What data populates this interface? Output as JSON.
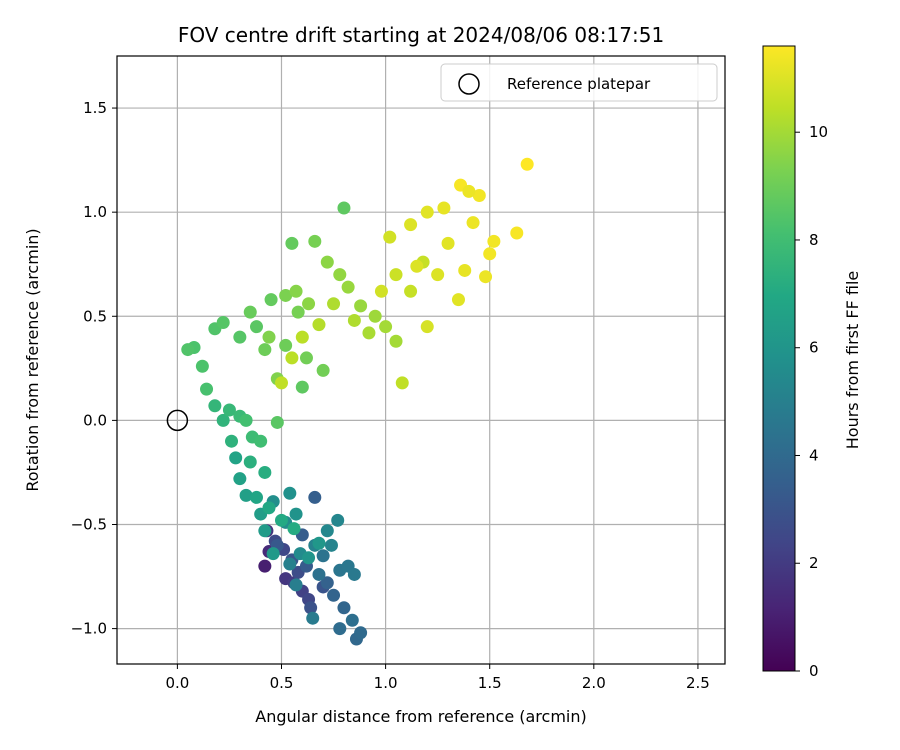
{
  "chart_data": {
    "type": "scatter",
    "title": "FOV centre drift starting at 2024/08/06 08:17:51",
    "xlabel": "Angular distance from reference (arcmin)",
    "ylabel": "Rotation from reference (arcmin)",
    "xlim": [
      -0.29,
      2.63
    ],
    "ylim": [
      -1.17,
      1.75
    ],
    "xticks": [
      0.0,
      0.5,
      1.0,
      1.5,
      2.0,
      2.5
    ],
    "xtick_labels": [
      "0.0",
      "0.5",
      "1.0",
      "1.5",
      "2.0",
      "2.5"
    ],
    "yticks": [
      -1.0,
      -0.5,
      0.0,
      0.5,
      1.0,
      1.5
    ],
    "ytick_labels": [
      "−1.0",
      "−0.5",
      "0.0",
      "0.5",
      "1.0",
      "1.5"
    ],
    "grid": true,
    "legend": {
      "position": "top-right",
      "entries": [
        "Reference platepar"
      ]
    },
    "reference_point": {
      "name": "Reference platepar",
      "x": 0.0,
      "y": 0.0
    },
    "colorbar": {
      "label": "Hours from first FF file",
      "colormap": "viridis",
      "range": [
        0,
        11.6
      ],
      "ticks": [
        0,
        2,
        4,
        6,
        8,
        10
      ],
      "tick_labels": [
        "0",
        "2",
        "4",
        "6",
        "8",
        "10"
      ]
    },
    "series": [
      {
        "points": [
          [
            0.42,
            -0.7,
            1.0
          ],
          [
            0.44,
            -0.63,
            1.4
          ],
          [
            0.43,
            -0.53,
            1.7
          ],
          [
            0.52,
            -0.76,
            1.8
          ],
          [
            0.56,
            -0.78,
            2.0
          ],
          [
            0.6,
            -0.82,
            2.2
          ],
          [
            0.63,
            -0.86,
            2.4
          ],
          [
            0.51,
            -0.62,
            2.5
          ],
          [
            0.47,
            -0.58,
            2.6
          ],
          [
            0.58,
            -0.73,
            2.7
          ],
          [
            0.64,
            -0.9,
            2.9
          ],
          [
            0.7,
            -0.8,
            3.0
          ],
          [
            0.55,
            -0.67,
            3.1
          ],
          [
            0.48,
            -0.6,
            3.2
          ],
          [
            0.62,
            -0.7,
            3.3
          ],
          [
            0.6,
            -0.55,
            3.4
          ],
          [
            0.66,
            -0.37,
            3.5
          ],
          [
            0.72,
            -0.78,
            3.6
          ],
          [
            0.75,
            -0.84,
            3.7
          ],
          [
            0.8,
            -0.9,
            3.8
          ],
          [
            0.86,
            -1.05,
            3.9
          ],
          [
            0.88,
            -1.02,
            4.0
          ],
          [
            0.78,
            -1.0,
            4.1
          ],
          [
            0.84,
            -0.96,
            4.2
          ],
          [
            0.68,
            -0.74,
            4.3
          ],
          [
            0.7,
            -0.65,
            4.4
          ],
          [
            0.78,
            -0.72,
            4.5
          ],
          [
            0.82,
            -0.7,
            4.6
          ],
          [
            0.85,
            -0.74,
            4.7
          ],
          [
            0.65,
            -0.95,
            4.8
          ],
          [
            0.57,
            -0.79,
            4.9
          ],
          [
            0.54,
            -0.69,
            5.0
          ],
          [
            0.66,
            -0.6,
            5.1
          ],
          [
            0.74,
            -0.6,
            5.2
          ],
          [
            0.77,
            -0.48,
            5.3
          ],
          [
            0.72,
            -0.53,
            5.4
          ],
          [
            0.59,
            -0.64,
            5.5
          ],
          [
            0.52,
            -0.49,
            5.6
          ],
          [
            0.46,
            -0.39,
            5.7
          ],
          [
            0.54,
            -0.35,
            5.8
          ],
          [
            0.57,
            -0.45,
            5.9
          ],
          [
            0.63,
            -0.66,
            6.0
          ],
          [
            0.68,
            -0.59,
            6.1
          ],
          [
            0.46,
            -0.64,
            6.2
          ],
          [
            0.42,
            -0.53,
            6.3
          ],
          [
            0.4,
            -0.45,
            6.4
          ],
          [
            0.33,
            -0.36,
            6.5
          ],
          [
            0.3,
            -0.28,
            6.6
          ],
          [
            0.28,
            -0.18,
            6.7
          ],
          [
            0.38,
            -0.37,
            6.8
          ],
          [
            0.44,
            -0.42,
            6.9
          ],
          [
            0.5,
            -0.48,
            7.0
          ],
          [
            0.56,
            -0.52,
            7.1
          ],
          [
            0.42,
            -0.25,
            7.2
          ],
          [
            0.35,
            -0.2,
            7.3
          ],
          [
            0.26,
            -0.1,
            7.4
          ],
          [
            0.22,
            0.0,
            7.5
          ],
          [
            0.18,
            0.07,
            7.6
          ],
          [
            0.25,
            0.05,
            7.7
          ],
          [
            0.3,
            0.02,
            7.8
          ],
          [
            0.36,
            -0.08,
            7.9
          ],
          [
            0.4,
            -0.1,
            8.0
          ],
          [
            0.33,
            0.0,
            8.1
          ],
          [
            0.14,
            0.15,
            8.2
          ],
          [
            0.12,
            0.26,
            8.3
          ],
          [
            0.08,
            0.35,
            8.3
          ],
          [
            0.05,
            0.34,
            8.4
          ],
          [
            0.18,
            0.44,
            8.4
          ],
          [
            0.22,
            0.47,
            8.5
          ],
          [
            0.3,
            0.4,
            8.5
          ],
          [
            0.38,
            0.45,
            8.6
          ],
          [
            0.48,
            -0.01,
            8.6
          ],
          [
            0.6,
            0.16,
            8.7
          ],
          [
            0.8,
            1.02,
            8.7
          ],
          [
            0.55,
            0.85,
            8.8
          ],
          [
            0.45,
            0.58,
            8.8
          ],
          [
            0.35,
            0.52,
            8.9
          ],
          [
            0.42,
            0.34,
            9.0
          ],
          [
            0.52,
            0.36,
            9.0
          ],
          [
            0.62,
            0.3,
            9.1
          ],
          [
            0.7,
            0.24,
            9.1
          ],
          [
            0.66,
            0.86,
            9.2
          ],
          [
            0.58,
            0.52,
            9.2
          ],
          [
            0.52,
            0.6,
            9.3
          ],
          [
            0.44,
            0.4,
            9.4
          ],
          [
            0.48,
            0.2,
            9.4
          ],
          [
            0.57,
            0.62,
            9.5
          ],
          [
            0.63,
            0.56,
            9.6
          ],
          [
            0.72,
            0.76,
            9.6
          ],
          [
            0.78,
            0.7,
            9.7
          ],
          [
            0.82,
            0.64,
            9.8
          ],
          [
            0.88,
            0.55,
            9.8
          ],
          [
            0.95,
            0.5,
            9.9
          ],
          [
            1.0,
            0.45,
            10.0
          ],
          [
            1.05,
            0.38,
            10.0
          ],
          [
            0.92,
            0.42,
            10.1
          ],
          [
            0.85,
            0.48,
            10.2
          ],
          [
            0.75,
            0.56,
            10.2
          ],
          [
            0.68,
            0.46,
            10.3
          ],
          [
            0.6,
            0.4,
            10.4
          ],
          [
            0.55,
            0.3,
            10.4
          ],
          [
            0.5,
            0.18,
            10.5
          ],
          [
            1.08,
            0.18,
            10.5
          ],
          [
            1.12,
            0.62,
            10.6
          ],
          [
            1.18,
            0.76,
            10.6
          ],
          [
            1.05,
            0.7,
            10.7
          ],
          [
            0.98,
            0.62,
            10.8
          ],
          [
            1.02,
            0.88,
            10.8
          ],
          [
            1.2,
            0.45,
            10.9
          ],
          [
            1.15,
            0.74,
            11.0
          ],
          [
            1.25,
            0.7,
            11.0
          ],
          [
            1.3,
            0.85,
            11.1
          ],
          [
            1.35,
            0.58,
            11.1
          ],
          [
            1.38,
            0.72,
            11.2
          ],
          [
            1.42,
            0.95,
            11.3
          ],
          [
            1.48,
            0.69,
            11.3
          ],
          [
            1.52,
            0.86,
            11.4
          ],
          [
            1.45,
            1.08,
            11.4
          ],
          [
            1.36,
            1.13,
            11.5
          ],
          [
            1.68,
            1.23,
            11.6
          ],
          [
            1.63,
            0.9,
            11.5
          ],
          [
            1.5,
            0.8,
            11.4
          ],
          [
            1.4,
            1.1,
            11.3
          ],
          [
            1.28,
            1.02,
            11.2
          ],
          [
            1.2,
            1.0,
            11.1
          ],
          [
            1.12,
            0.94,
            11.0
          ]
        ]
      }
    ]
  }
}
